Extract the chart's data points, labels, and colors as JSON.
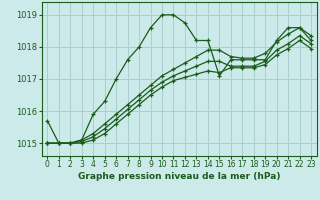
{
  "xlabel": "Graphe pression niveau de la mer (hPa)",
  "background_color": "#cceaea",
  "grid_color": "#aacece",
  "line_color": "#1a5c1a",
  "xlim": [
    -0.5,
    23.5
  ],
  "ylim": [
    1014.6,
    1019.4
  ],
  "yticks": [
    1015,
    1016,
    1017,
    1018,
    1019
  ],
  "xticks": [
    0,
    1,
    2,
    3,
    4,
    5,
    6,
    7,
    8,
    9,
    10,
    11,
    12,
    13,
    14,
    15,
    16,
    17,
    18,
    19,
    20,
    21,
    22,
    23
  ],
  "series": [
    [
      1015.7,
      1015.0,
      1015.0,
      1015.1,
      1015.9,
      1016.3,
      1017.0,
      1017.6,
      1018.0,
      1018.6,
      1019.0,
      1019.0,
      1018.75,
      1018.2,
      1018.2,
      1017.1,
      1017.6,
      1017.6,
      1017.6,
      1017.6,
      1018.2,
      1018.6,
      1018.6,
      1018.2
    ],
    [
      1015.0,
      1015.0,
      1015.0,
      1015.1,
      1015.3,
      1015.6,
      1015.9,
      1016.2,
      1016.5,
      1016.8,
      1017.1,
      1017.3,
      1017.5,
      1017.7,
      1017.9,
      1017.9,
      1017.7,
      1017.65,
      1017.65,
      1017.8,
      1018.15,
      1018.4,
      1018.6,
      1018.35
    ],
    [
      1015.0,
      1015.0,
      1015.0,
      1015.05,
      1015.2,
      1015.45,
      1015.75,
      1016.05,
      1016.35,
      1016.65,
      1016.9,
      1017.1,
      1017.25,
      1017.4,
      1017.55,
      1017.55,
      1017.4,
      1017.4,
      1017.4,
      1017.55,
      1017.9,
      1018.1,
      1018.35,
      1018.1
    ],
    [
      1015.0,
      1015.0,
      1015.0,
      1015.0,
      1015.1,
      1015.3,
      1015.6,
      1015.9,
      1016.2,
      1016.5,
      1016.75,
      1016.95,
      1017.05,
      1017.15,
      1017.25,
      1017.2,
      1017.35,
      1017.35,
      1017.35,
      1017.45,
      1017.75,
      1017.95,
      1018.2,
      1017.95
    ]
  ]
}
